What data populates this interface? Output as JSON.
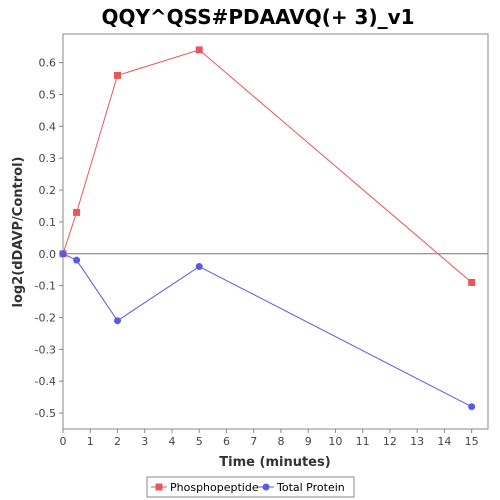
{
  "chart_data": {
    "type": "line",
    "title": "QQY^QSS#PDAAVQ(+ 3)_v1",
    "xlabel": "Time (minutes)",
    "ylabel": "log2(dDAVP/Control)",
    "xlim": [
      0,
      15.6
    ],
    "ylim": [
      -0.55,
      0.69
    ],
    "x_ticks": [
      0,
      1,
      2,
      3,
      4,
      5,
      6,
      7,
      8,
      9,
      10,
      11,
      12,
      13,
      14,
      15
    ],
    "y_ticks": [
      -0.5,
      -0.4,
      -0.3,
      -0.2,
      -0.1,
      0.0,
      0.1,
      0.2,
      0.3,
      0.4,
      0.5,
      0.6
    ],
    "x_tick_labels": [
      "0",
      "1",
      "2",
      "3",
      "4",
      "5",
      "6",
      "7",
      "8",
      "9",
      "10",
      "11",
      "12",
      "13",
      "14",
      "15"
    ],
    "y_tick_labels": [
      "-0.5",
      "-0.4",
      "-0.3",
      "-0.2",
      "-0.1",
      "0.0",
      "0.1",
      "0.2",
      "0.3",
      "0.4",
      "0.5",
      "0.6"
    ],
    "zero_line": true,
    "grid": false,
    "legend_position": "bottom",
    "series": [
      {
        "name": "Phosphopeptide",
        "color": "#e8575a",
        "marker": "square",
        "points": [
          [
            0,
            0.0
          ],
          [
            0.5,
            0.13
          ],
          [
            2,
            0.56
          ],
          [
            5,
            0.64
          ],
          [
            15,
            -0.09
          ]
        ]
      },
      {
        "name": "Total Protein",
        "color": "#5a5ae6",
        "marker": "circle",
        "points": [
          [
            0,
            0.0
          ],
          [
            0.5,
            -0.02
          ],
          [
            2,
            -0.21
          ],
          [
            5,
            -0.04
          ],
          [
            15,
            -0.48
          ]
        ]
      }
    ]
  }
}
